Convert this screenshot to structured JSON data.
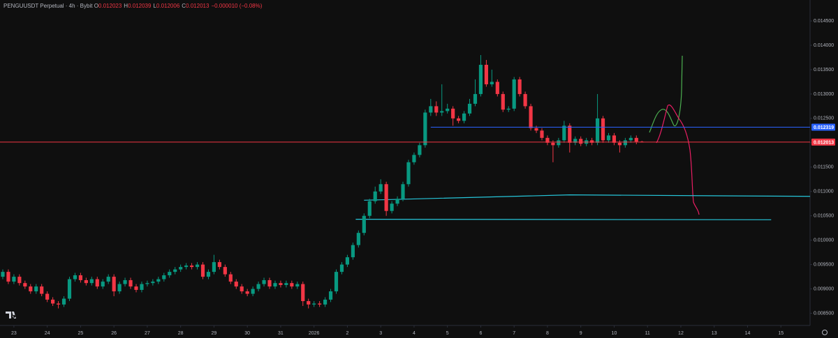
{
  "header": {
    "symbol": "PENGUUSDT Perpetual · 4h · Bybit",
    "ohlc": [
      {
        "k": "O",
        "v": "0.012023"
      },
      {
        "k": "H",
        "v": "0.012039"
      },
      {
        "k": "L",
        "v": "0.012006"
      },
      {
        "k": "C",
        "v": "0.012013"
      }
    ],
    "change": "−0.000010 (−0.08%)"
  },
  "chart_data": {
    "type": "candlestick",
    "up_color": "#089981",
    "down_color": "#f23645",
    "grid": false,
    "xlim": [
      -10,
      573
    ],
    "ylim": [
      0.00825,
      0.01493
    ],
    "xticks": [
      {
        "value": 0,
        "label": "23"
      },
      {
        "value": 24,
        "label": "24"
      },
      {
        "value": 48,
        "label": "25"
      },
      {
        "value": 72,
        "label": "26"
      },
      {
        "value": 96,
        "label": "27"
      },
      {
        "value": 120,
        "label": "28"
      },
      {
        "value": 144,
        "label": "29"
      },
      {
        "value": 168,
        "label": "30"
      },
      {
        "value": 192,
        "label": "31"
      },
      {
        "value": 216,
        "label": "2026"
      },
      {
        "value": 240,
        "label": "2"
      },
      {
        "value": 264,
        "label": "3"
      },
      {
        "value": 288,
        "label": "4"
      },
      {
        "value": 312,
        "label": "5"
      },
      {
        "value": 336,
        "label": "6"
      },
      {
        "value": 360,
        "label": "7"
      },
      {
        "value": 384,
        "label": "8"
      },
      {
        "value": 408,
        "label": "9"
      },
      {
        "value": 432,
        "label": "10"
      },
      {
        "value": 456,
        "label": "11"
      },
      {
        "value": 480,
        "label": "12"
      },
      {
        "value": 504,
        "label": "13"
      },
      {
        "value": 528,
        "label": "14"
      },
      {
        "value": 552,
        "label": "15"
      }
    ],
    "yticks": [
      {
        "value": 0.0145,
        "label": "0.014500"
      },
      {
        "value": 0.014,
        "label": "0.014000"
      },
      {
        "value": 0.0135,
        "label": "0.013500"
      },
      {
        "value": 0.013,
        "label": "0.013000"
      },
      {
        "value": 0.0125,
        "label": "0.012500"
      },
      {
        "value": 0.012,
        "label": "0.012000"
      },
      {
        "value": 0.0115,
        "label": "0.011500"
      },
      {
        "value": 0.011,
        "label": "0.011000"
      },
      {
        "value": 0.0105,
        "label": "0.010500"
      },
      {
        "value": 0.01,
        "label": "0.010000"
      },
      {
        "value": 0.0095,
        "label": "0.009500"
      },
      {
        "value": 0.009,
        "label": "0.009000"
      },
      {
        "value": 0.0085,
        "label": "0.008500"
      }
    ],
    "x": [
      -8,
      -4,
      0,
      4,
      8,
      12,
      16,
      20,
      24,
      28,
      32,
      36,
      40,
      44,
      48,
      52,
      56,
      60,
      64,
      68,
      72,
      76,
      80,
      84,
      88,
      92,
      96,
      100,
      104,
      108,
      112,
      116,
      120,
      124,
      128,
      132,
      136,
      140,
      144,
      148,
      152,
      156,
      160,
      164,
      168,
      172,
      176,
      180,
      184,
      188,
      192,
      196,
      200,
      204,
      208,
      212,
      216,
      220,
      224,
      228,
      232,
      236,
      240,
      244,
      248,
      252,
      256,
      260,
      264,
      268,
      272,
      276,
      280,
      284,
      288,
      292,
      296,
      300,
      304,
      308,
      312,
      316,
      320,
      324,
      328,
      332,
      336,
      340,
      344,
      348,
      352,
      356,
      360,
      364,
      368,
      372,
      376,
      380,
      384,
      388,
      392,
      396,
      400,
      404,
      408,
      412,
      416,
      420,
      424,
      428,
      432,
      436,
      440,
      444,
      448,
      452
    ],
    "open": [
      0.00925,
      0.00935,
      0.00915,
      0.00925,
      0.00912,
      0.00905,
      0.00895,
      0.00905,
      0.0089,
      0.00878,
      0.0087,
      0.00868,
      0.0088,
      0.0092,
      0.00928,
      0.00918,
      0.00912,
      0.0092,
      0.00905,
      0.00915,
      0.00925,
      0.00895,
      0.0091,
      0.00918,
      0.00905,
      0.00898,
      0.0091,
      0.00912,
      0.00915,
      0.0092,
      0.00928,
      0.00935,
      0.0094,
      0.00945,
      0.00948,
      0.00945,
      0.0095,
      0.00925,
      0.00935,
      0.00955,
      0.00945,
      0.0093,
      0.00915,
      0.00905,
      0.00895,
      0.0089,
      0.009,
      0.0091,
      0.00918,
      0.00905,
      0.00912,
      0.00908,
      0.00912,
      0.00905,
      0.0091,
      0.00875,
      0.00868,
      0.0087,
      0.00868,
      0.00878,
      0.00895,
      0.00935,
      0.0095,
      0.00965,
      0.0099,
      0.01015,
      0.0105,
      0.0108,
      0.011,
      0.01115,
      0.0106,
      0.01075,
      0.01085,
      0.01115,
      0.0116,
      0.01175,
      0.01195,
      0.01262,
      0.01275,
      0.01262,
      0.01265,
      0.0127,
      0.0125,
      0.01245,
      0.0126,
      0.0128,
      0.013,
      0.0136,
      0.0132,
      0.01325,
      0.013,
      0.01268,
      0.0127,
      0.0133,
      0.013,
      0.01275,
      0.0123,
      0.01225,
      0.0121,
      0.012,
      0.01195,
      0.01205,
      0.01235,
      0.012,
      0.01208,
      0.01198,
      0.01205,
      0.012,
      0.0125,
      0.01205,
      0.01215,
      0.012,
      0.01195,
      0.01205,
      0.0121,
      0.012023
    ],
    "high": [
      0.0094,
      0.0094,
      0.0093,
      0.0093,
      0.00917,
      0.0091,
      0.0091,
      0.0091,
      0.00895,
      0.00883,
      0.00875,
      0.00885,
      0.00925,
      0.00933,
      0.00933,
      0.00923,
      0.00925,
      0.00925,
      0.0092,
      0.0093,
      0.0093,
      0.00915,
      0.00923,
      0.00923,
      0.0091,
      0.00915,
      0.00917,
      0.0092,
      0.00925,
      0.00933,
      0.0094,
      0.00945,
      0.0095,
      0.00953,
      0.00953,
      0.00955,
      0.00955,
      0.0094,
      0.0097,
      0.0096,
      0.0095,
      0.00935,
      0.0092,
      0.0091,
      0.009,
      0.00905,
      0.00915,
      0.00923,
      0.00923,
      0.00917,
      0.00917,
      0.00917,
      0.00917,
      0.00915,
      0.00915,
      0.0088,
      0.00875,
      0.00875,
      0.00883,
      0.009,
      0.0094,
      0.00955,
      0.0097,
      0.00995,
      0.0102,
      0.01055,
      0.01085,
      0.0111,
      0.01125,
      0.0112,
      0.0108,
      0.0109,
      0.0112,
      0.01165,
      0.0118,
      0.012,
      0.01268,
      0.0129,
      0.01285,
      0.0132,
      0.0128,
      0.01275,
      0.01255,
      0.01265,
      0.0129,
      0.0133,
      0.0138,
      0.0137,
      0.0135,
      0.0133,
      0.01305,
      0.01275,
      0.01335,
      0.01335,
      0.01305,
      0.0128,
      0.01235,
      0.0123,
      0.01215,
      0.01205,
      0.0121,
      0.01245,
      0.0124,
      0.01213,
      0.01213,
      0.0121,
      0.0121,
      0.013,
      0.01255,
      0.0122,
      0.0122,
      0.01205,
      0.0121,
      0.01215,
      0.01215,
      0.012039
    ],
    "low": [
      0.0092,
      0.0091,
      0.0091,
      0.00907,
      0.009,
      0.0089,
      0.0089,
      0.00885,
      0.00873,
      0.00865,
      0.0086,
      0.00863,
      0.00875,
      0.00915,
      0.00913,
      0.00907,
      0.00907,
      0.009,
      0.009,
      0.0091,
      0.00885,
      0.0089,
      0.00905,
      0.009,
      0.00893,
      0.00893,
      0.00905,
      0.00907,
      0.0091,
      0.00915,
      0.00923,
      0.0093,
      0.00935,
      0.0094,
      0.0094,
      0.0094,
      0.0092,
      0.0092,
      0.0093,
      0.0094,
      0.00925,
      0.0091,
      0.009,
      0.0089,
      0.00885,
      0.00885,
      0.00895,
      0.00905,
      0.009,
      0.009,
      0.00903,
      0.00903,
      0.009,
      0.009,
      0.00865,
      0.0086,
      0.00863,
      0.00863,
      0.00863,
      0.00873,
      0.0089,
      0.0093,
      0.00945,
      0.0096,
      0.00985,
      0.0101,
      0.01045,
      0.01075,
      0.01095,
      0.0105,
      0.01055,
      0.0107,
      0.0108,
      0.0111,
      0.01155,
      0.0117,
      0.0119,
      0.01255,
      0.01255,
      0.01255,
      0.0126,
      0.01235,
      0.0124,
      0.0124,
      0.01255,
      0.01275,
      0.01295,
      0.01315,
      0.01315,
      0.01295,
      0.01263,
      0.01263,
      0.01265,
      0.01295,
      0.0127,
      0.01225,
      0.0122,
      0.01205,
      0.01195,
      0.0116,
      0.0119,
      0.012,
      0.0118,
      0.01195,
      0.01193,
      0.01193,
      0.01195,
      0.01195,
      0.012,
      0.012,
      0.01195,
      0.0118,
      0.0119,
      0.012,
      0.01197,
      0.012006
    ],
    "close": [
      0.00935,
      0.00915,
      0.00925,
      0.00912,
      0.00905,
      0.00895,
      0.00905,
      0.0089,
      0.00878,
      0.0087,
      0.00868,
      0.0088,
      0.0092,
      0.00928,
      0.00918,
      0.00912,
      0.0092,
      0.00905,
      0.00915,
      0.00925,
      0.00895,
      0.0091,
      0.00918,
      0.00905,
      0.00898,
      0.0091,
      0.00912,
      0.00915,
      0.0092,
      0.00928,
      0.00935,
      0.0094,
      0.00945,
      0.00948,
      0.00945,
      0.0095,
      0.00925,
      0.00935,
      0.00955,
      0.00945,
      0.0093,
      0.00915,
      0.00905,
      0.00895,
      0.0089,
      0.009,
      0.0091,
      0.00918,
      0.00905,
      0.00912,
      0.00908,
      0.00912,
      0.00905,
      0.0091,
      0.00875,
      0.00868,
      0.0087,
      0.00868,
      0.00878,
      0.00895,
      0.00935,
      0.0095,
      0.00965,
      0.0099,
      0.01015,
      0.0105,
      0.0108,
      0.011,
      0.01115,
      0.0106,
      0.01075,
      0.01085,
      0.01115,
      0.0116,
      0.01175,
      0.01195,
      0.01262,
      0.01275,
      0.01262,
      0.01265,
      0.0127,
      0.0125,
      0.01245,
      0.0126,
      0.0128,
      0.013,
      0.0136,
      0.0132,
      0.01325,
      0.013,
      0.01268,
      0.0127,
      0.0133,
      0.013,
      0.01275,
      0.0123,
      0.01225,
      0.0121,
      0.012,
      0.01195,
      0.01205,
      0.01235,
      0.012,
      0.01208,
      0.01198,
      0.01205,
      0.012,
      0.0125,
      0.01205,
      0.01215,
      0.012,
      0.01195,
      0.01205,
      0.0121,
      0.012023,
      0.012013
    ],
    "price_lines": [
      {
        "value": 0.012319,
        "label": "0.012319",
        "color": "#2962ff",
        "from": 300
      },
      {
        "value": 0.012013,
        "label": "0.012013",
        "color": "#f23645",
        "from": -10
      }
    ],
    "trend_lines": [
      {
        "x": [
          252,
          400,
          573
        ],
        "y": [
          0.01082,
          0.01093,
          0.0109
        ],
        "color": "#26c6da"
      },
      {
        "x": [
          246,
          545
        ],
        "y": [
          0.01043,
          0.01042
        ],
        "color": "#26c6da"
      }
    ]
  }
}
